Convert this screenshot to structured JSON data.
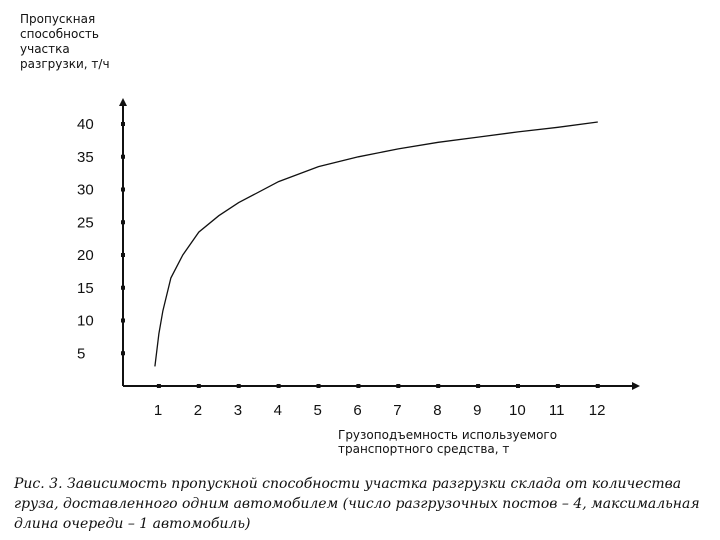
{
  "chart_data": {
    "type": "line",
    "ylabel": "Пропускная способность участка разгрузки, т/ч",
    "xlabel": "Грузоподъемность используемого транспортного средства, т",
    "caption": "Рис. 3. Зависимость пропускной способности участка разгрузки склада от количества груза, доставленного одним автомобилем (число разгрузочных постов – 4, максимальная длина очереди – 1 автомобиль)",
    "x_ticks": [
      "1",
      "2",
      "3",
      "4",
      "5",
      "6",
      "7",
      "8",
      "9",
      "10",
      "11",
      "12"
    ],
    "y_ticks": [
      "5",
      "10",
      "15",
      "20",
      "25",
      "30",
      "35",
      "40"
    ],
    "xlim": [
      0,
      13
    ],
    "ylim": [
      0,
      41
    ],
    "grid": false,
    "series": [
      {
        "x": [
          0.9,
          1.0,
          1.1,
          1.3,
          1.6,
          2.0,
          2.5,
          3.0,
          4.0,
          5.0,
          6.0,
          7.0,
          8.0,
          9.0,
          10.0,
          11.0,
          12.0
        ],
        "y": [
          3.0,
          8.0,
          11.5,
          16.5,
          20.0,
          23.5,
          26.0,
          28.0,
          31.2,
          33.5,
          35.0,
          36.2,
          37.2,
          38.0,
          38.8,
          39.5,
          40.3
        ]
      }
    ],
    "color": "#111111"
  }
}
